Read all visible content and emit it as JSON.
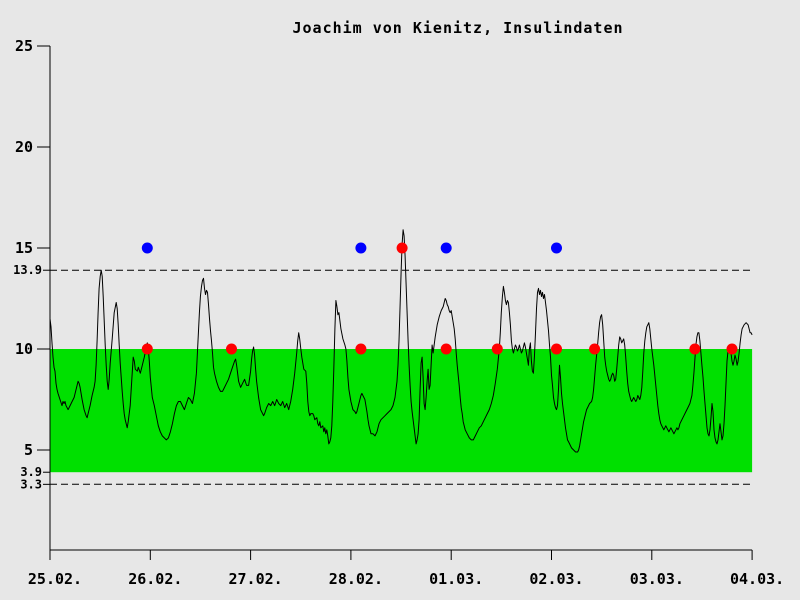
{
  "colors": {
    "background": "#e7e7e7",
    "band": "#00e000",
    "curve": "#000000",
    "axis": "#000000",
    "red": "#ff0000",
    "blue": "#0000ff",
    "text": "#000000"
  },
  "chart_data": {
    "type": "line",
    "title": "Joachim von Kienitz, Insulindaten",
    "xlabel": "",
    "ylabel": "",
    "x_axis": {
      "unit": "day",
      "range_days": [
        0,
        7
      ],
      "tick_days": [
        0,
        1,
        2,
        3,
        4,
        5,
        6,
        7
      ],
      "tick_labels": [
        "25.02.",
        "26.02.",
        "27.02.",
        "28.02.",
        "01.03.",
        "02.03.",
        "03.03.",
        "04.03."
      ]
    },
    "y_axis": {
      "range": [
        0,
        25
      ],
      "ticks": [
        25,
        20,
        15,
        10,
        5
      ],
      "grid": false
    },
    "target_band": {
      "low": 3.9,
      "high": 10
    },
    "thresholds": [
      {
        "label": "13.9",
        "value": 13.9,
        "line": "dashed"
      },
      {
        "label": "3.9",
        "value": 3.9,
        "line": "band-edge"
      },
      {
        "label": "3.3",
        "value": 3.3,
        "line": "dashed"
      }
    ],
    "markers": [
      {
        "name": "blue-dots-15",
        "color_key": "blue",
        "value": 15,
        "days": [
          0.97,
          3.1,
          3.95,
          5.05
        ]
      },
      {
        "name": "red-dot-15",
        "color_key": "red",
        "value": 15,
        "days": [
          3.51
        ]
      },
      {
        "name": "red-dots-10",
        "color_key": "red",
        "value": 10,
        "days": [
          0.97,
          1.81,
          3.1,
          3.95,
          4.46,
          5.05,
          5.43,
          6.43,
          6.8
        ]
      }
    ],
    "series": [
      {
        "name": "glucose-curve",
        "type": "line",
        "points_day_value": [
          0,
          11.5,
          0.01,
          11.1,
          0.02,
          10.3,
          0.03,
          9.6,
          0.04,
          9.1,
          0.05,
          8.9,
          0.06,
          8.3,
          0.07,
          8,
          0.08,
          7.8,
          0.1,
          7.5,
          0.12,
          7.2,
          0.13,
          7.4,
          0.14,
          7.3,
          0.15,
          7.4,
          0.16,
          7.2,
          0.18,
          7,
          0.19,
          7.1,
          0.2,
          7.2,
          0.22,
          7.4,
          0.24,
          7.6,
          0.26,
          8,
          0.28,
          8.4,
          0.29,
          8.3,
          0.3,
          8.1,
          0.32,
          7.5,
          0.34,
          7,
          0.36,
          6.7,
          0.37,
          6.6,
          0.38,
          6.8,
          0.4,
          7.2,
          0.42,
          7.7,
          0.44,
          8.1,
          0.45,
          8.4,
          0.46,
          9.2,
          0.47,
          10.4,
          0.48,
          11.8,
          0.49,
          13,
          0.5,
          13.6,
          0.51,
          13.9,
          0.52,
          13.6,
          0.53,
          12.6,
          0.54,
          11.4,
          0.55,
          10.2,
          0.56,
          9.2,
          0.57,
          8.4,
          0.58,
          8,
          0.59,
          8.5,
          0.6,
          9.3,
          0.62,
          10.5,
          0.64,
          11.8,
          0.66,
          12.3,
          0.67,
          12,
          0.68,
          11.2,
          0.69,
          10.2,
          0.7,
          9.3,
          0.71,
          8.6,
          0.72,
          7.9,
          0.73,
          7.3,
          0.74,
          6.8,
          0.75,
          6.5,
          0.77,
          6.1,
          0.78,
          6.4,
          0.8,
          7.2,
          0.82,
          8.8,
          0.83,
          9.6,
          0.84,
          9.4,
          0.85,
          9,
          0.87,
          8.9,
          0.88,
          9.1,
          0.9,
          8.8,
          0.92,
          9.2,
          0.94,
          9.6,
          0.96,
          10.1,
          0.97,
          10.3,
          0.98,
          10,
          0.99,
          9.4,
          1,
          8.6,
          1.02,
          7.6,
          1.04,
          7.2,
          1.06,
          6.7,
          1.08,
          6.2,
          1.1,
          5.9,
          1.12,
          5.7,
          1.14,
          5.6,
          1.16,
          5.5,
          1.18,
          5.6,
          1.2,
          5.9,
          1.22,
          6.3,
          1.24,
          6.8,
          1.26,
          7.2,
          1.28,
          7.4,
          1.3,
          7.4,
          1.32,
          7.2,
          1.34,
          7,
          1.36,
          7.3,
          1.38,
          7.6,
          1.4,
          7.5,
          1.42,
          7.3,
          1.44,
          7.8,
          1.46,
          8.8,
          1.47,
          9.8,
          1.48,
          10.8,
          1.49,
          11.8,
          1.5,
          12.6,
          1.51,
          13.1,
          1.52,
          13.4,
          1.53,
          13.5,
          1.54,
          13,
          1.55,
          12.7,
          1.56,
          12.9,
          1.57,
          12.8,
          1.58,
          12.2,
          1.59,
          11.5,
          1.6,
          10.9,
          1.61,
          10.4,
          1.62,
          9.8,
          1.63,
          9.1,
          1.64,
          8.8,
          1.66,
          8.4,
          1.68,
          8.1,
          1.7,
          7.9,
          1.72,
          7.9,
          1.74,
          8.1,
          1.76,
          8.3,
          1.78,
          8.5,
          1.8,
          8.8,
          1.82,
          9.1,
          1.84,
          9.4,
          1.85,
          9.5,
          1.86,
          9.2,
          1.87,
          8.8,
          1.88,
          8.4,
          1.9,
          8.1,
          1.92,
          8.3,
          1.94,
          8.5,
          1.96,
          8.2,
          1.98,
          8.2,
          2,
          8.9,
          2.01,
          9.5,
          2.02,
          9.9,
          2.03,
          10.1,
          2.04,
          9.7,
          2.05,
          9,
          2.06,
          8.4,
          2.08,
          7.6,
          2.1,
          7,
          2.12,
          6.8,
          2.13,
          6.7,
          2.14,
          6.8,
          2.16,
          7.1,
          2.18,
          7.3,
          2.2,
          7.2,
          2.22,
          7.4,
          2.24,
          7.2,
          2.26,
          7.5,
          2.28,
          7.3,
          2.3,
          7.2,
          2.32,
          7.4,
          2.34,
          7.1,
          2.36,
          7.3,
          2.38,
          7,
          2.4,
          7.4,
          2.42,
          8,
          2.44,
          8.8,
          2.46,
          9.8,
          2.47,
          10.4,
          2.48,
          10.8,
          2.49,
          10.5,
          2.5,
          10,
          2.51,
          9.6,
          2.52,
          9.3,
          2.53,
          9,
          2.55,
          8.9,
          2.56,
          8.3,
          2.57,
          7.4,
          2.58,
          6.9,
          2.59,
          6.7,
          2.6,
          6.8,
          2.62,
          6.8,
          2.63,
          6.7,
          2.64,
          6.5,
          2.66,
          6.6,
          2.67,
          6.3,
          2.68,
          6.2,
          2.69,
          6.4,
          2.7,
          6.1,
          2.72,
          6.2,
          2.73,
          5.9,
          2.74,
          6.1,
          2.75,
          5.8,
          2.76,
          6,
          2.77,
          5.7,
          2.78,
          5.3,
          2.79,
          5.4,
          2.8,
          5.6,
          2.81,
          6.2,
          2.82,
          7.4,
          2.83,
          9,
          2.84,
          11,
          2.85,
          12.4,
          2.86,
          12.1,
          2.87,
          11.7,
          2.88,
          11.8,
          2.89,
          11.4,
          2.9,
          11,
          2.92,
          10.5,
          2.94,
          10.2,
          2.95,
          10,
          2.96,
          9.4,
          2.97,
          8.6,
          2.98,
          8,
          2.99,
          7.7,
          3,
          7.4,
          3.02,
          7,
          3.04,
          6.9,
          3.05,
          6.8,
          3.06,
          6.9,
          3.08,
          7.3,
          3.1,
          7.7,
          3.11,
          7.8,
          3.12,
          7.7,
          3.14,
          7.5,
          3.15,
          7.2,
          3.16,
          6.9,
          3.17,
          6.5,
          3.18,
          6.2,
          3.19,
          6,
          3.2,
          5.8,
          3.22,
          5.8,
          3.24,
          5.7,
          3.26,
          5.9,
          3.28,
          6.3,
          3.3,
          6.5,
          3.32,
          6.6,
          3.34,
          6.7,
          3.36,
          6.8,
          3.38,
          6.9,
          3.4,
          7,
          3.42,
          7.2,
          3.44,
          7.6,
          3.46,
          8.4,
          3.47,
          9.2,
          3.48,
          10.4,
          3.49,
          12,
          3.5,
          13.8,
          3.51,
          15.2,
          3.52,
          15.9,
          3.53,
          15.6,
          3.54,
          14.6,
          3.55,
          13.2,
          3.56,
          11.8,
          3.57,
          10.4,
          3.58,
          9.2,
          3.59,
          8.2,
          3.6,
          7.4,
          3.61,
          6.9,
          3.62,
          6.5,
          3.63,
          6.1,
          3.64,
          5.7,
          3.65,
          5.3,
          3.66,
          5.5,
          3.67,
          5.8,
          3.68,
          6.5,
          3.69,
          8,
          3.7,
          9.3,
          3.71,
          9.6,
          3.72,
          8.6,
          3.73,
          7.3,
          3.74,
          7,
          3.75,
          7.6,
          3.76,
          8.4,
          3.77,
          9,
          3.78,
          8,
          3.79,
          8.2,
          3.8,
          9.2,
          3.81,
          10.2,
          3.82,
          9.8,
          3.84,
          10.6,
          3.86,
          11.2,
          3.88,
          11.6,
          3.9,
          11.9,
          3.92,
          12.1,
          3.93,
          12.3,
          3.94,
          12.5,
          3.95,
          12.4,
          3.96,
          12.2,
          3.97,
          12.1,
          3.98,
          11.9,
          3.99,
          11.8,
          4,
          11.9,
          4.01,
          11.6,
          4.02,
          11.3,
          4.03,
          11,
          4.04,
          10.5,
          4.05,
          9.8,
          4.06,
          9.2,
          4.07,
          8.7,
          4.08,
          8.2,
          4.09,
          7.6,
          4.1,
          7.1,
          4.11,
          6.8,
          4.12,
          6.4,
          4.13,
          6.2,
          4.14,
          6,
          4.16,
          5.8,
          4.18,
          5.6,
          4.2,
          5.5,
          4.22,
          5.5,
          4.24,
          5.7,
          4.26,
          5.9,
          4.28,
          6.1,
          4.3,
          6.2,
          4.32,
          6.4,
          4.34,
          6.6,
          4.36,
          6.8,
          4.38,
          7,
          4.4,
          7.3,
          4.42,
          7.7,
          4.44,
          8.3,
          4.46,
          9,
          4.47,
          9.5,
          4.48,
          10,
          4.49,
          10.8,
          4.5,
          11.8,
          4.51,
          12.6,
          4.52,
          13.1,
          4.53,
          12.8,
          4.54,
          12.4,
          4.55,
          12.2,
          4.56,
          12.4,
          4.57,
          12.3,
          4.58,
          11.8,
          4.59,
          11.2,
          4.6,
          10.4,
          4.61,
          10,
          4.62,
          9.8,
          4.63,
          10,
          4.64,
          10.2,
          4.65,
          10.1,
          4.66,
          9.9,
          4.67,
          10,
          4.68,
          10.2,
          4.69,
          10,
          4.7,
          9.8,
          4.71,
          9.9,
          4.72,
          10.1,
          4.73,
          10.3,
          4.74,
          10.1,
          4.75,
          9.8,
          4.76,
          9.5,
          4.77,
          9.2,
          4.78,
          10,
          4.79,
          10.3,
          4.8,
          9.4,
          4.81,
          8.9,
          4.82,
          8.8,
          4.83,
          9.6,
          4.84,
          10.8,
          4.85,
          12,
          4.86,
          12.8,
          4.87,
          13,
          4.88,
          12.7,
          4.89,
          12.9,
          4.9,
          12.6,
          4.91,
          12.8,
          4.92,
          12.5,
          4.93,
          12.7,
          4.94,
          12.3,
          4.95,
          11.9,
          4.96,
          11.4,
          4.97,
          10.9,
          4.98,
          10.2,
          4.99,
          9.6,
          5,
          8.7,
          5.01,
          8.2,
          5.02,
          7.6,
          5.03,
          7.3,
          5.04,
          7.1,
          5.05,
          7,
          5.06,
          7.2,
          5.07,
          8,
          5.08,
          9.2,
          5.09,
          8.6,
          5.1,
          7.8,
          5.11,
          7.3,
          5.12,
          6.9,
          5.13,
          6.5,
          5.14,
          6.1,
          5.15,
          5.8,
          5.16,
          5.5,
          5.17,
          5.4,
          5.18,
          5.3,
          5.19,
          5.2,
          5.2,
          5.1,
          5.22,
          5,
          5.24,
          4.9,
          5.26,
          4.9,
          5.27,
          5,
          5.28,
          5.2,
          5.29,
          5.5,
          5.3,
          5.8,
          5.31,
          6.1,
          5.32,
          6.4,
          5.33,
          6.6,
          5.34,
          6.8,
          5.35,
          7,
          5.36,
          7.1,
          5.38,
          7.3,
          5.4,
          7.4,
          5.41,
          7.6,
          5.42,
          8,
          5.43,
          8.6,
          5.44,
          9.2,
          5.45,
          9.7,
          5.46,
          10.2,
          5.47,
          10.8,
          5.48,
          11.3,
          5.49,
          11.6,
          5.5,
          11.7,
          5.51,
          11.2,
          5.52,
          10.4,
          5.53,
          9.6,
          5.54,
          9.2,
          5.55,
          8.9,
          5.56,
          8.7,
          5.57,
          8.5,
          5.58,
          8.4,
          5.59,
          8.5,
          5.6,
          8.7,
          5.61,
          8.8,
          5.62,
          8.7,
          5.63,
          8.4,
          5.64,
          8.5,
          5.65,
          9,
          5.66,
          9.6,
          5.67,
          10.2,
          5.68,
          10.6,
          5.69,
          10.5,
          5.7,
          10.3,
          5.71,
          10.4,
          5.72,
          10.5,
          5.73,
          10.2,
          5.74,
          9.6,
          5.75,
          8.9,
          5.76,
          8.3,
          5.77,
          7.9,
          5.78,
          7.7,
          5.79,
          7.5,
          5.8,
          7.4,
          5.82,
          7.6,
          5.83,
          7.5,
          5.84,
          7.4,
          5.85,
          7.5,
          5.86,
          7.7,
          5.87,
          7.6,
          5.88,
          7.5,
          5.89,
          7.7,
          5.9,
          8.1,
          5.91,
          8.9,
          5.92,
          9.8,
          5.93,
          10.4,
          5.94,
          10.8,
          5.95,
          11.1,
          5.96,
          11.2,
          5.97,
          11.3,
          5.98,
          11,
          5.99,
          10.5,
          6,
          10,
          6.01,
          9.6,
          6.02,
          9.2,
          6.03,
          8.7,
          6.04,
          8.2,
          6.05,
          7.7,
          6.06,
          7.2,
          6.07,
          6.8,
          6.08,
          6.5,
          6.09,
          6.3,
          6.1,
          6.2,
          6.11,
          6.1,
          6.12,
          6,
          6.13,
          6.1,
          6.14,
          6.2,
          6.15,
          6.1,
          6.16,
          6,
          6.17,
          5.9,
          6.18,
          6,
          6.19,
          6.1,
          6.2,
          6,
          6.21,
          5.9,
          6.22,
          5.8,
          6.23,
          5.9,
          6.24,
          6,
          6.25,
          6.1,
          6.26,
          6,
          6.27,
          6.1,
          6.28,
          6.3,
          6.3,
          6.5,
          6.32,
          6.7,
          6.34,
          6.9,
          6.36,
          7.1,
          6.38,
          7.3,
          6.39,
          7.5,
          6.4,
          7.7,
          6.41,
          8.2,
          6.42,
          8.8,
          6.43,
          9.5,
          6.44,
          10.2,
          6.45,
          10.6,
          6.46,
          10.8,
          6.47,
          10.8,
          6.48,
          10.4,
          6.49,
          9.8,
          6.5,
          9.2,
          6.51,
          8.6,
          6.52,
          7.9,
          6.53,
          7.3,
          6.54,
          6.7,
          6.55,
          6.1,
          6.56,
          5.8,
          6.57,
          5.7,
          6.58,
          6,
          6.59,
          6.6,
          6.6,
          7.3,
          6.61,
          6.9,
          6.62,
          6,
          6.63,
          5.6,
          6.64,
          5.4,
          6.65,
          5.3,
          6.66,
          5.5,
          6.67,
          5.9,
          6.68,
          6.3,
          6.69,
          5.9,
          6.7,
          5.5,
          6.71,
          5.7,
          6.72,
          6.3,
          6.73,
          7.2,
          6.74,
          8.3,
          6.75,
          9.4,
          6.76,
          9.9,
          6.77,
          10.1,
          6.78,
          10.2,
          6.79,
          9.8,
          6.8,
          9.4,
          6.81,
          9.2,
          6.82,
          9.4,
          6.83,
          9.7,
          6.84,
          9.5,
          6.85,
          9.2,
          6.86,
          9.4,
          6.87,
          9.8,
          6.88,
          10.3,
          6.89,
          10.7,
          6.9,
          11,
          6.91,
          11.1,
          6.92,
          11.2,
          6.94,
          11.3,
          6.96,
          11.2,
          6.97,
          11,
          6.98,
          10.8,
          6.99,
          10.8,
          7,
          10.7
        ]
      }
    ]
  }
}
